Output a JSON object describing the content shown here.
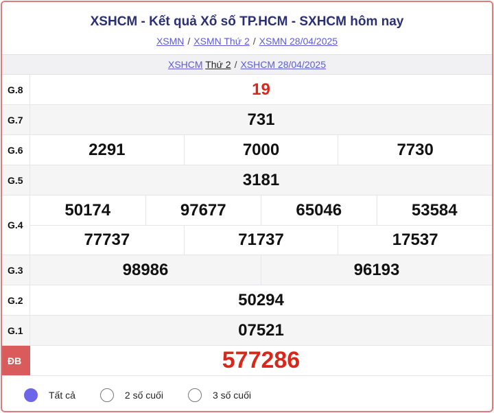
{
  "header": {
    "title": "XSHCM - Kết quả Xổ số TP.HCM - SXHCM hôm nay",
    "breadcrumbs": [
      "XSMN",
      "XSMN Thứ 2",
      "XSMN 28/04/2025"
    ],
    "sub": {
      "link1": "XSHCM",
      "link1_suffix": "Thứ 2",
      "link2": "XSHCM 28/04/2025"
    }
  },
  "separator": "/",
  "prizes": [
    {
      "label": "G.8",
      "lines": [
        [
          "19"
        ]
      ],
      "highlight": true
    },
    {
      "label": "G.7",
      "lines": [
        [
          "731"
        ]
      ]
    },
    {
      "label": "G.6",
      "lines": [
        [
          "2291",
          "7000",
          "7730"
        ]
      ]
    },
    {
      "label": "G.5",
      "lines": [
        [
          "3181"
        ]
      ]
    },
    {
      "label": "G.4",
      "lines": [
        [
          "50174",
          "97677",
          "65046",
          "53584"
        ],
        [
          "77737",
          "71737",
          "17537"
        ]
      ]
    },
    {
      "label": "G.3",
      "lines": [
        [
          "98986",
          "96193"
        ]
      ]
    },
    {
      "label": "G.2",
      "lines": [
        [
          "50294"
        ]
      ]
    },
    {
      "label": "G.1",
      "lines": [
        [
          "07521"
        ]
      ]
    },
    {
      "label": "ĐB",
      "lines": [
        [
          "577286"
        ]
      ],
      "highlight": true
    }
  ],
  "filter": {
    "options": [
      "Tất cả",
      "2 số cuối",
      "3 số cuối"
    ],
    "selected": 0
  },
  "colors": {
    "accent": "#6e66e8",
    "red": "#d8281c",
    "border": "#e07a7a",
    "title": "#2b2f73"
  }
}
